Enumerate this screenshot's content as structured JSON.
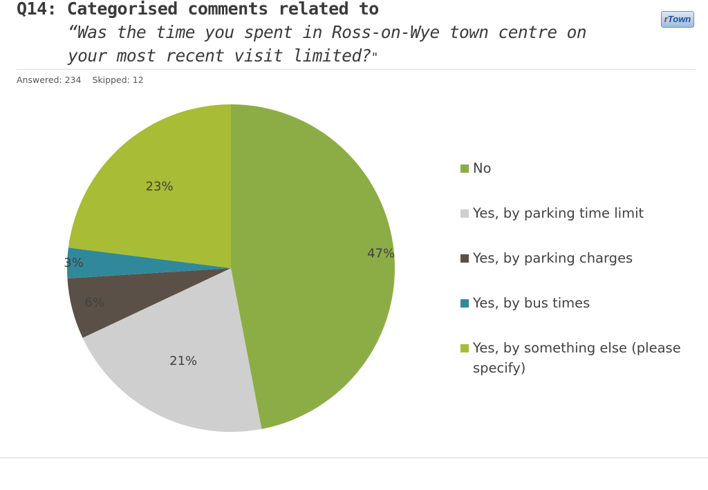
{
  "title": "Q14: Categorised comments related to",
  "subtitle_main": "“Was the time you spent in Ross-on-Wye town centre on your most recent visit limited?",
  "subtitle_end": "\"",
  "logo": {
    "r": "r",
    "rest": "Town"
  },
  "answered": "Answered: 234",
  "skipped": "Skipped: 12",
  "chart_data": {
    "type": "pie",
    "categories": [
      "No",
      "Yes, by parking time limit",
      "Yes, by parking charges",
      "Yes, by bus times",
      "Yes, by something else (please specify)"
    ],
    "values": [
      47,
      21,
      6,
      3,
      23
    ],
    "labels": [
      "47%",
      "21%",
      "6%",
      "3%",
      "23%"
    ],
    "colors": [
      "#8cad45",
      "#cfcfcf",
      "#5b5047",
      "#30899a",
      "#a9bc35"
    ],
    "start_angle": "12 o'clock",
    "direction": "clockwise",
    "legend_position": "right"
  }
}
